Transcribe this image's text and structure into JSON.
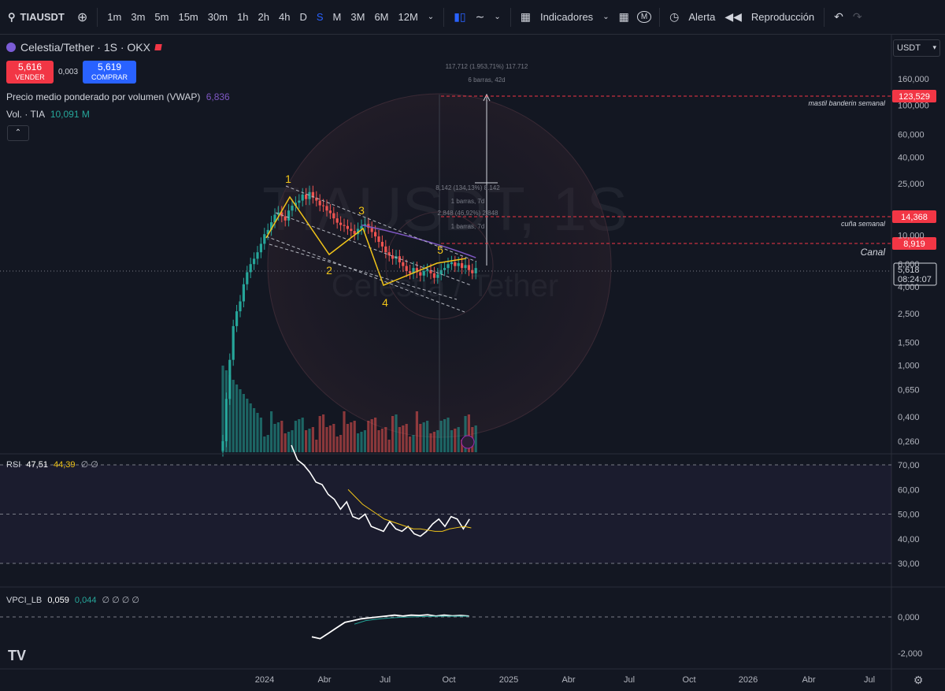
{
  "toolbar": {
    "symbol": "TIAUSDT",
    "intervals": [
      "1m",
      "3m",
      "5m",
      "15m",
      "30m",
      "1h",
      "2h",
      "4h",
      "D",
      "S",
      "M",
      "3M",
      "6M",
      "12M"
    ],
    "active_interval": "S",
    "indicators_label": "Indicadores",
    "alert_label": "Alerta",
    "replay_label": "Reproducción"
  },
  "legend": {
    "title": "Celestia/Tether · 1S · OKX",
    "sell_price": "5,616",
    "sell_label": "VENDER",
    "spread": "0,003",
    "buy_price": "5,619",
    "buy_label": "COMPRAR",
    "vwap_label": "Precio medio ponderado por volumen (VWAP)",
    "vwap_value": "6,836",
    "vol_label": "Vol. · TIA",
    "vol_value": "10,091 M"
  },
  "currency": "USDT",
  "watermark": {
    "symbol": "TIAUSDT, 1S",
    "name": "Celestia / Tether"
  },
  "chart_data": {
    "type": "candlestick",
    "scale": "log",
    "x_ticks": [
      "2024",
      "Abr",
      "Jul",
      "Oct",
      "2025",
      "Abr",
      "Jul",
      "Oct",
      "2026",
      "Abr",
      "Jul"
    ],
    "y_ticks": [
      "160,000",
      "100,000",
      "60,000",
      "40,000",
      "25,000",
      "10,000",
      "6,000",
      "4,000",
      "2,500",
      "1,500",
      "1,000",
      "0,650",
      "0,400",
      "0,260"
    ],
    "last_price": "5,618",
    "countdown": "08:24:07",
    "horizontal_levels": [
      {
        "value": "123,529",
        "label": "mastil banderin semanal"
      },
      {
        "value": "14,368",
        "label": "cuña semanal"
      },
      {
        "value": "8,919",
        "label": "Canal"
      }
    ],
    "measure_labels": [
      {
        "line1": "117,712 (1.953,71%) 117.712",
        "line2": "6 barras, 42d"
      },
      {
        "line1": "8,142 (134,13%) 8.142",
        "line2": "1 barras, 7d"
      },
      {
        "line1": "2,848 (46,92%) 2.848",
        "line2": "1 barras, 7d"
      }
    ],
    "wave_labels": [
      "1",
      "2",
      "3",
      "4",
      "5"
    ],
    "colors": {
      "up": "#26a69a",
      "down": "#ef5350",
      "vwap": "#7e57c2",
      "wave": "#f0c419"
    }
  },
  "rsi": {
    "label": "RSI",
    "value": "47,51",
    "ma": "44,39",
    "extra": "∅ ∅",
    "y_ticks": [
      "70,00",
      "60,00",
      "50,00",
      "40,00",
      "30,00"
    ]
  },
  "vpci": {
    "label": "VPCI_LB",
    "value": "0,059",
    "signal": "0,044",
    "extra": "∅ ∅ ∅ ∅",
    "y_ticks": [
      "0,000",
      "-2,000"
    ]
  }
}
